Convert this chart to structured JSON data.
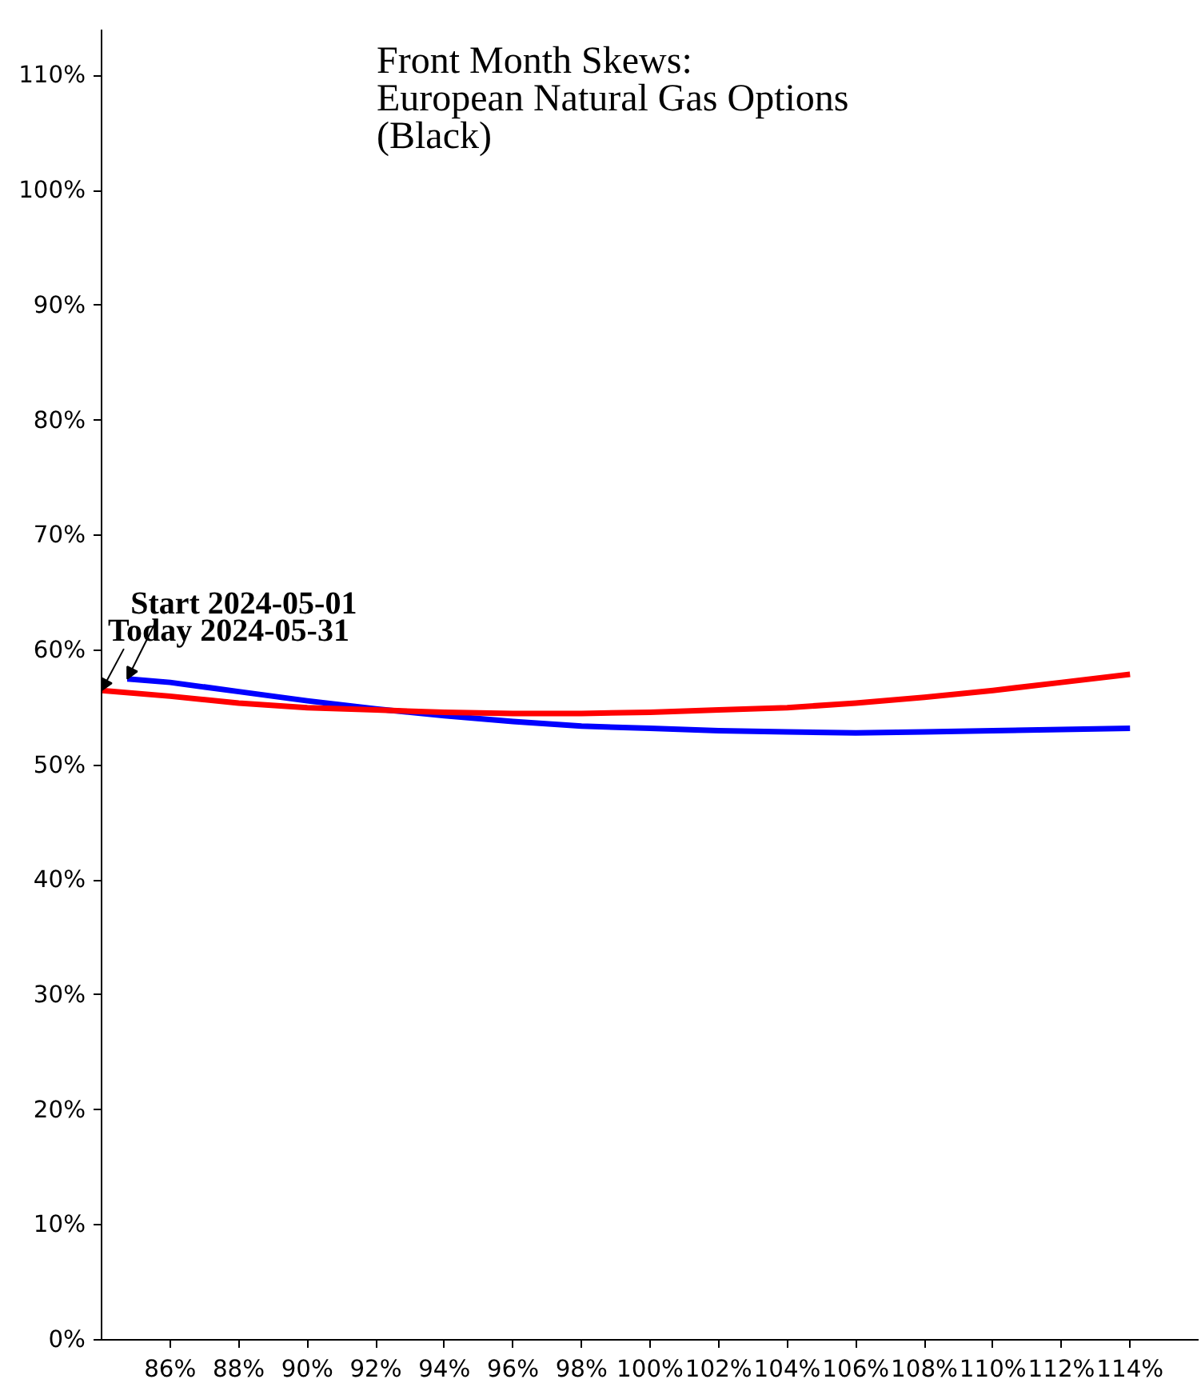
{
  "chart_data": {
    "type": "line",
    "title": "Front Month Skews:\nEuropean Natural Gas Options\n(Black)",
    "series": [
      {
        "color": "#0000ff",
        "x": [
          84.75,
          86,
          88,
          90,
          92,
          94,
          96,
          98,
          100,
          102,
          104,
          106,
          108,
          110,
          112,
          114
        ],
        "values": [
          57.5,
          57.2,
          56.4,
          55.6,
          54.9,
          54.3,
          53.8,
          53.4,
          53.2,
          53.0,
          52.9,
          52.8,
          52.9,
          53.0,
          53.1,
          53.2
        ]
      },
      {
        "color": "#ff0000",
        "x": [
          84,
          86,
          88,
          90,
          92,
          94,
          96,
          98,
          100,
          102,
          104,
          106,
          108,
          110,
          112,
          114
        ],
        "values": [
          56.5,
          56.0,
          55.4,
          55.0,
          54.8,
          54.6,
          54.5,
          54.5,
          54.6,
          54.8,
          55.0,
          55.4,
          55.9,
          56.5,
          57.2,
          57.9
        ]
      }
    ],
    "annotations": [
      {
        "text": "Start 2024-05-01",
        "x": 84.75,
        "y": 57.5
      },
      {
        "text": "Today 2024-05-31",
        "x": 84,
        "y": 56.5
      }
    ],
    "xlim": [
      84,
      116
    ],
    "ylim": [
      0,
      114
    ],
    "xticks": [
      {
        "value": 86,
        "label": "86%"
      },
      {
        "value": 88,
        "label": "88%"
      },
      {
        "value": 90,
        "label": "90%"
      },
      {
        "value": 92,
        "label": "92%"
      },
      {
        "value": 94,
        "label": "94%"
      },
      {
        "value": 96,
        "label": "96%"
      },
      {
        "value": 98,
        "label": "98%"
      },
      {
        "value": 100,
        "label": "100%"
      },
      {
        "value": 102,
        "label": "102%"
      },
      {
        "value": 104,
        "label": "104%"
      },
      {
        "value": 106,
        "label": "106%"
      },
      {
        "value": 108,
        "label": "108%"
      },
      {
        "value": 110,
        "label": "110%"
      },
      {
        "value": 112,
        "label": "112%"
      },
      {
        "value": 114,
        "label": "114%"
      }
    ],
    "yticks": [
      {
        "value": 0,
        "label": "0%"
      },
      {
        "value": 10,
        "label": "10%"
      },
      {
        "value": 20,
        "label": "20%"
      },
      {
        "value": 30,
        "label": "30%"
      },
      {
        "value": 40,
        "label": "40%"
      },
      {
        "value": 50,
        "label": "50%"
      },
      {
        "value": 60,
        "label": "60%"
      },
      {
        "value": 70,
        "label": "70%"
      },
      {
        "value": 80,
        "label": "80%"
      },
      {
        "value": 90,
        "label": "90%"
      },
      {
        "value": 100,
        "label": "100%"
      },
      {
        "value": 110,
        "label": "110%"
      }
    ],
    "grid": false,
    "marker": "none",
    "line_style": "solid"
  }
}
